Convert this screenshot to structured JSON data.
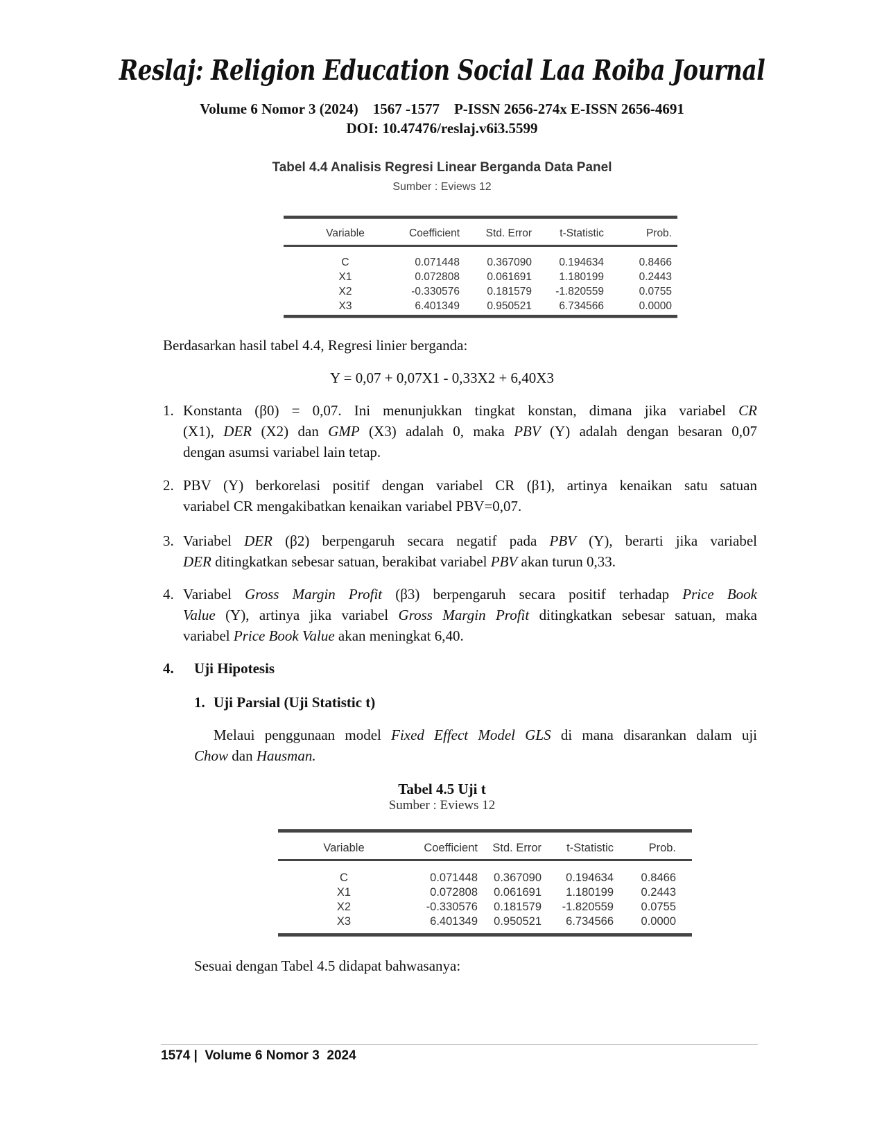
{
  "header": {
    "journal_title": "Reslaj: Religion Education Social Laa Roiba Journal",
    "volume_line": "Volume 6 Nomor 3 (2024)    1567 -1577    P-ISSN 2656-274x E-ISSN 2656-4691",
    "doi": "DOI: 10.47476/reslaj.v6i3.5599"
  },
  "table_4_4": {
    "caption": "Tabel 4.4 Analisis Regresi Linear Berganda Data Panel",
    "source": "Sumber : Eviews 12",
    "columns": [
      "Variable",
      "Coefficient",
      "Std. Error",
      "t-Statistic",
      "Prob."
    ],
    "rows": [
      [
        "C",
        "0.071448",
        "0.367090",
        "0.194634",
        "0.8466"
      ],
      [
        "X1",
        "0.072808",
        "0.061691",
        "1.180199",
        "0.2443"
      ],
      [
        "X2",
        "-0.330576",
        "0.181579",
        "-1.820559",
        "0.0755"
      ],
      [
        "X3",
        "6.401349",
        "0.950521",
        "6.734566",
        "0.0000"
      ]
    ]
  },
  "intro": "Berdasarkan hasil tabel 4.4, Regresi linier berganda:",
  "equation": "Y = 0,07 + 0,07X1 - 0,33X2 + 6,40X3",
  "items": [
    {
      "number": "1.",
      "lines": [
        [
          [
            "Konstanta (β0) = 0,07. Ini menunjukkan tingkat konstan, dimana jika variabel ",
            0
          ],
          [
            "CR",
            1
          ]
        ],
        [
          [
            "(X1), ",
            0
          ],
          [
            "DER",
            1
          ],
          [
            " (X2) dan ",
            0
          ],
          [
            "GMP",
            1
          ],
          [
            " (X3) adalah 0, maka ",
            0
          ],
          [
            "PBV",
            1
          ],
          [
            " (Y) adalah dengan besaran 0,07",
            0
          ]
        ],
        [
          [
            "dengan asumsi variabel lain tetap.",
            0
          ]
        ]
      ]
    },
    {
      "number": "2.",
      "lines": [
        [
          [
            "PBV (Y) berkorelasi positif dengan variabel CR (β1), artinya kenaikan satu satuan",
            0
          ]
        ],
        [
          [
            "variabel CR mengakibatkan kenaikan variabel PBV=0,07.",
            0
          ]
        ]
      ]
    },
    {
      "number": "3.",
      "lines": [
        [
          [
            "Variabel ",
            0
          ],
          [
            "DER",
            1
          ],
          [
            " (β2) berpengaruh secara negatif pada ",
            0
          ],
          [
            "PBV",
            1
          ],
          [
            " (Y), berarti jika variabel",
            0
          ]
        ],
        [
          [
            "DER",
            1
          ],
          [
            " ditingkatkan sebesar satuan, berakibat variabel ",
            0
          ],
          [
            "PBV",
            1
          ],
          [
            " akan turun 0,33.",
            0
          ]
        ]
      ]
    },
    {
      "number": "4.",
      "lines": [
        [
          [
            "Variabel ",
            0
          ],
          [
            "Gross Margin Profit",
            1
          ],
          [
            " (β3) berpengaruh secara positif terhadap ",
            0
          ],
          [
            "Price Book",
            1
          ]
        ],
        [
          [
            "Value",
            1
          ],
          [
            " (Y), artinya jika variabel ",
            0
          ],
          [
            "Gross Margin Profit",
            1
          ],
          [
            " ditingkatkan sebesar satuan, maka",
            0
          ]
        ],
        [
          [
            "variabel ",
            0
          ],
          [
            "Price Book Value",
            1
          ],
          [
            " akan meningkat 6,40.",
            0
          ]
        ]
      ]
    }
  ],
  "section": {
    "number": "4.",
    "title": "Uji Hipotesis"
  },
  "subsection": {
    "number": "1.",
    "title": "Uji Parsial (Uji Statistic t)"
  },
  "paragraph_lines": [
    [
      [
        "Melaui penggunaan model ",
        0
      ],
      [
        "Fixed Effect Model GLS",
        1
      ],
      [
        " di mana disarankan dalam uji",
        0
      ]
    ],
    [
      [
        "Chow",
        1
      ],
      [
        " dan ",
        0
      ],
      [
        "Hausman.",
        1
      ]
    ]
  ],
  "table_4_5": {
    "caption": "Tabel 4.5 Uji t",
    "source": "Sumber : Eviews 12",
    "columns": [
      "Variable",
      "Coefficient",
      "Std. Error",
      "t-Statistic",
      "Prob."
    ],
    "rows": [
      [
        "C",
        "0.071448",
        "0.367090",
        "0.194634",
        "0.8466"
      ],
      [
        "X1",
        "0.072808",
        "0.061691",
        "1.180199",
        "0.2443"
      ],
      [
        "X2",
        "-0.330576",
        "0.181579",
        "-1.820559",
        "0.0755"
      ],
      [
        "X3",
        "6.401349",
        "0.950521",
        "6.734566",
        "0.0000"
      ]
    ]
  },
  "closing": "Sesuai dengan Tabel 4.5 didapat bahwasanya:",
  "footer": "1574 |  Volume 6 Nomor 3  2024"
}
